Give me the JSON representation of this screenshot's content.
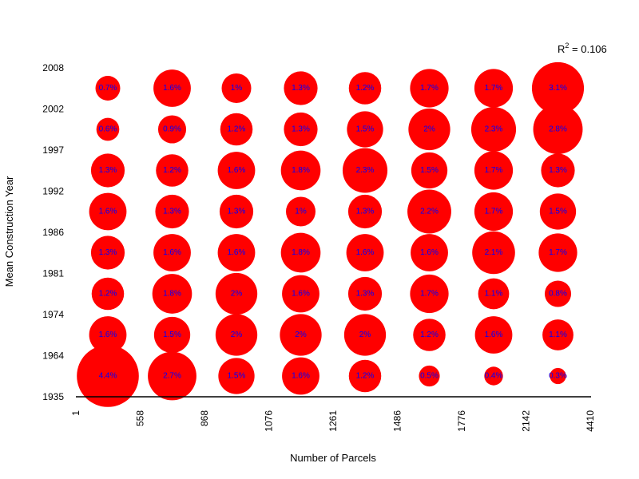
{
  "chart_data": {
    "type": "bubble-grid",
    "xlabel": "Number of Parcels",
    "ylabel": "Mean Construction Year",
    "x_ticks": [
      "1",
      "558",
      "868",
      "1076",
      "1261",
      "1486",
      "1776",
      "2142",
      "4410"
    ],
    "y_ticks": [
      "1935",
      "1964",
      "1974",
      "1981",
      "1986",
      "1992",
      "1997",
      "2002",
      "2008"
    ],
    "r2": {
      "prefix": "R",
      "sup": "2",
      "value": " = 0.106"
    },
    "bubble_color": "#ff0000",
    "label_color": "#0000ff",
    "rows": [
      {
        "y_bin": "1935-1964",
        "values": [
          4.4,
          2.7,
          1.5,
          1.6,
          1.2,
          0.5,
          0.4,
          0.3
        ],
        "labels": [
          "4.4%",
          "2.7%",
          "1.5%",
          "1.6%",
          "1.2%",
          "0.5%",
          "0.4%",
          "0.3%"
        ]
      },
      {
        "y_bin": "1964-1974",
        "values": [
          1.6,
          1.5,
          2.0,
          2.0,
          2.0,
          1.2,
          1.6,
          1.1
        ],
        "labels": [
          "1.6%",
          "1.5%",
          "2%",
          "2%",
          "2%",
          "1.2%",
          "1.6%",
          "1.1%"
        ]
      },
      {
        "y_bin": "1974-1981",
        "values": [
          1.2,
          1.8,
          2.0,
          1.6,
          1.3,
          1.7,
          1.1,
          0.8
        ],
        "labels": [
          "1.2%",
          "1.8%",
          "2%",
          "1.6%",
          "1.3%",
          "1.7%",
          "1.1%",
          "0.8%"
        ]
      },
      {
        "y_bin": "1981-1986",
        "values": [
          1.3,
          1.6,
          1.6,
          1.8,
          1.6,
          1.6,
          2.1,
          1.7
        ],
        "labels": [
          "1.3%",
          "1.6%",
          "1.6%",
          "1.8%",
          "1.6%",
          "1.6%",
          "2.1%",
          "1.7%"
        ]
      },
      {
        "y_bin": "1986-1992",
        "values": [
          1.6,
          1.3,
          1.3,
          1.0,
          1.3,
          2.2,
          1.7,
          1.5
        ],
        "labels": [
          "1.6%",
          "1.3%",
          "1.3%",
          "1%",
          "1.3%",
          "2.2%",
          "1.7%",
          "1.5%"
        ]
      },
      {
        "y_bin": "1992-1997",
        "values": [
          1.3,
          1.2,
          1.6,
          1.8,
          2.3,
          1.5,
          1.7,
          1.3
        ],
        "labels": [
          "1.3%",
          "1.2%",
          "1.6%",
          "1.8%",
          "2.3%",
          "1.5%",
          "1.7%",
          "1.3%"
        ]
      },
      {
        "y_bin": "1997-2002",
        "values": [
          0.6,
          0.9,
          1.2,
          1.3,
          1.5,
          2.0,
          2.3,
          2.8
        ],
        "labels": [
          "0.6%",
          "0.9%",
          "1.2%",
          "1.3%",
          "1.5%",
          "2%",
          "2.3%",
          "2.8%"
        ]
      },
      {
        "y_bin": "2002-2008",
        "values": [
          0.7,
          1.6,
          1.0,
          1.3,
          1.2,
          1.7,
          1.7,
          3.1
        ],
        "labels": [
          "0.7%",
          "1.6%",
          "1%",
          "1.3%",
          "1.2%",
          "1.7%",
          "1.7%",
          "3.1%"
        ]
      }
    ]
  }
}
